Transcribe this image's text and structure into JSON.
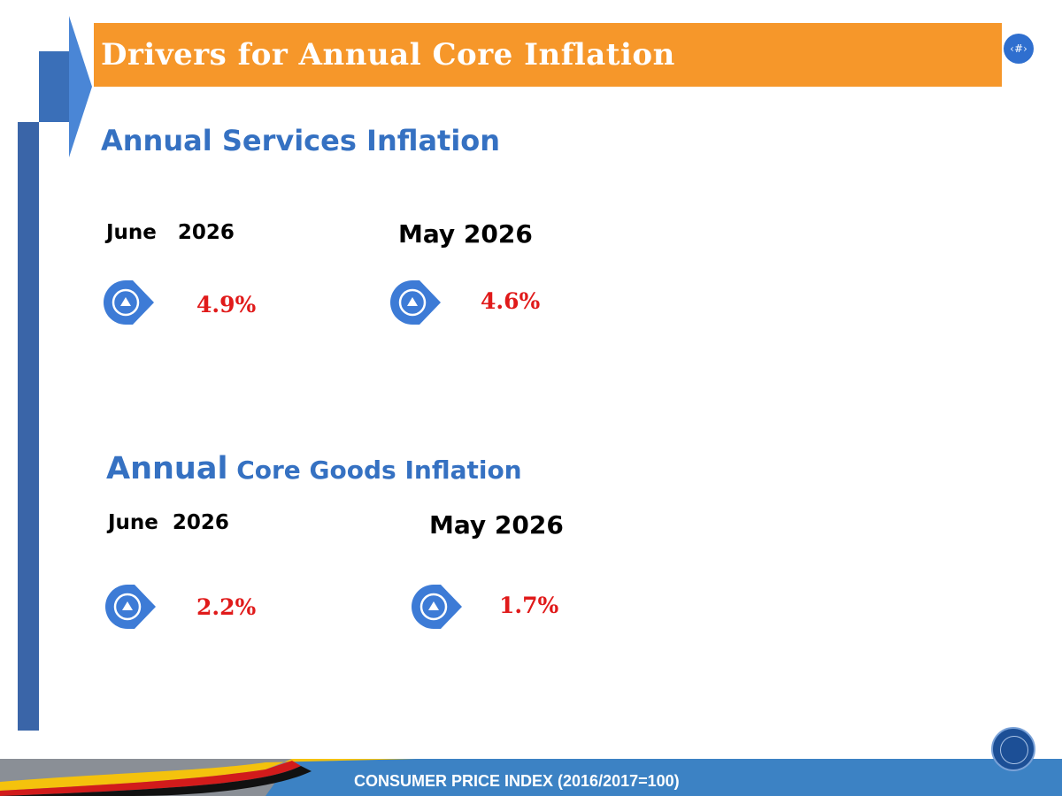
{
  "slide": {
    "title": "Drivers for Annual Core Inflation",
    "page_number": "‹#›"
  },
  "services": {
    "heading": "Annual Services Inflation",
    "current": {
      "period": "June   2026",
      "value": "4.9%",
      "direction_icon": "up-arrow-icon"
    },
    "previous": {
      "period": "May 2026",
      "value": "4.6%",
      "direction_icon": "up-arrow-icon"
    }
  },
  "goods": {
    "heading_big": "Annual",
    "heading_small": " Core Goods Inflation",
    "current": {
      "period": "June  2026",
      "value": "2.2%",
      "direction_icon": "up-arrow-icon"
    },
    "previous": {
      "period": "May 2026",
      "value": "1.7%",
      "direction_icon": "up-arrow-icon"
    }
  },
  "footer": {
    "text": "CONSUMER PRICE INDEX (2016/2017=100)"
  },
  "colors": {
    "accent_blue": "#3571c2",
    "banner_orange": "#f6972a",
    "value_red": "#e01a1a",
    "footer_blue": "#3c82c4"
  }
}
